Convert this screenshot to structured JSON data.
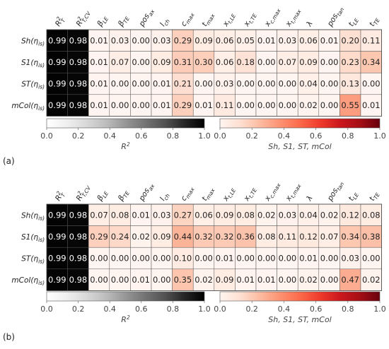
{
  "chart_data": [
    {
      "type": "heatmap",
      "panel_label": "(a)",
      "columns": [
        "R²_T",
        "R²_T,CV",
        "β_LE",
        "β_TE",
        "pos_ax",
        "l_ch",
        "c_max",
        "t_max",
        "x_t,LE",
        "x_t,TE",
        "x_c,max",
        "x_t,max",
        "λ",
        "pos_tan",
        "t_LE",
        "t_TE"
      ],
      "rows": [
        "Sh(η_is)",
        "S1(η_is)",
        "ST(η_is)",
        "mCol(η_is)"
      ],
      "values": [
        [
          0.99,
          0.98,
          0.01,
          0.03,
          0.0,
          0.03,
          0.29,
          0.09,
          0.06,
          0.05,
          0.01,
          0.03,
          0.06,
          0.01,
          0.2,
          0.11
        ],
        [
          0.99,
          0.98,
          0.01,
          0.07,
          0.0,
          0.09,
          0.31,
          0.3,
          0.06,
          0.18,
          0.0,
          0.07,
          0.09,
          0.0,
          0.23,
          0.34
        ],
        [
          0.99,
          0.98,
          0.01,
          0.0,
          0.0,
          0.01,
          0.21,
          0.0,
          0.03,
          0.0,
          0.0,
          0.0,
          0.04,
          0.0,
          0.13,
          0.0
        ],
        [
          0.99,
          0.98,
          0.01,
          0.0,
          0.0,
          0.01,
          0.29,
          0.01,
          0.11,
          0.0,
          0.0,
          0.0,
          0.02,
          0.0,
          0.55,
          0.01
        ]
      ],
      "colorbars": [
        {
          "label": "R²",
          "cmap": "greys",
          "range": [
            0.0,
            1.0
          ],
          "ticks": [
            "0.0",
            "0.2",
            "0.4",
            "0.6",
            "0.8",
            "1.0"
          ]
        },
        {
          "label": "Sh, S1, ST, mCol",
          "cmap": "reds",
          "range": [
            0.0,
            1.0
          ],
          "ticks": [
            "0.0",
            "0.2",
            "0.4",
            "0.6",
            "0.8",
            "1.0"
          ]
        }
      ]
    },
    {
      "type": "heatmap",
      "panel_label": "(b)",
      "columns": [
        "R²_T",
        "R²_T,CV",
        "β_LE",
        "β_TE",
        "pos_ax",
        "l_ch",
        "c_max",
        "t_max",
        "x_t,LE",
        "x_t,TE",
        "x_c,max",
        "x_t,max",
        "λ",
        "pos_tan",
        "t_LE",
        "t_TE"
      ],
      "rows": [
        "Sh(η_is)",
        "S1(η_is)",
        "ST(η_is)",
        "mCol(η_is)"
      ],
      "values": [
        [
          0.99,
          0.98,
          0.07,
          0.08,
          0.01,
          0.03,
          0.27,
          0.06,
          0.09,
          0.08,
          0.02,
          0.03,
          0.04,
          0.02,
          0.12,
          0.08
        ],
        [
          0.99,
          0.98,
          0.29,
          0.24,
          0.02,
          0.09,
          0.44,
          0.32,
          0.32,
          0.36,
          0.08,
          0.11,
          0.12,
          0.07,
          0.34,
          0.38
        ],
        [
          0.99,
          0.98,
          0.0,
          0.0,
          0.0,
          0.0,
          0.1,
          0.0,
          0.01,
          0.0,
          0.0,
          0.0,
          0.01,
          0.0,
          0.03,
          0.0
        ],
        [
          0.99,
          0.98,
          0.0,
          0.0,
          0.01,
          0.0,
          0.35,
          0.02,
          0.09,
          0.01,
          0.01,
          0.0,
          0.02,
          0.0,
          0.47,
          0.02
        ]
      ],
      "colorbars": [
        {
          "label": "R²",
          "cmap": "greys",
          "range": [
            0.0,
            1.0
          ],
          "ticks": [
            "0.0",
            "0.2",
            "0.4",
            "0.6",
            "0.8",
            "1.0"
          ]
        },
        {
          "label": "Sh, S1, ST, mCol",
          "cmap": "reds",
          "range": [
            0.0,
            1.0
          ],
          "ticks": [
            "0.0",
            "0.2",
            "0.4",
            "0.6",
            "0.8",
            "1.0"
          ]
        }
      ]
    }
  ]
}
